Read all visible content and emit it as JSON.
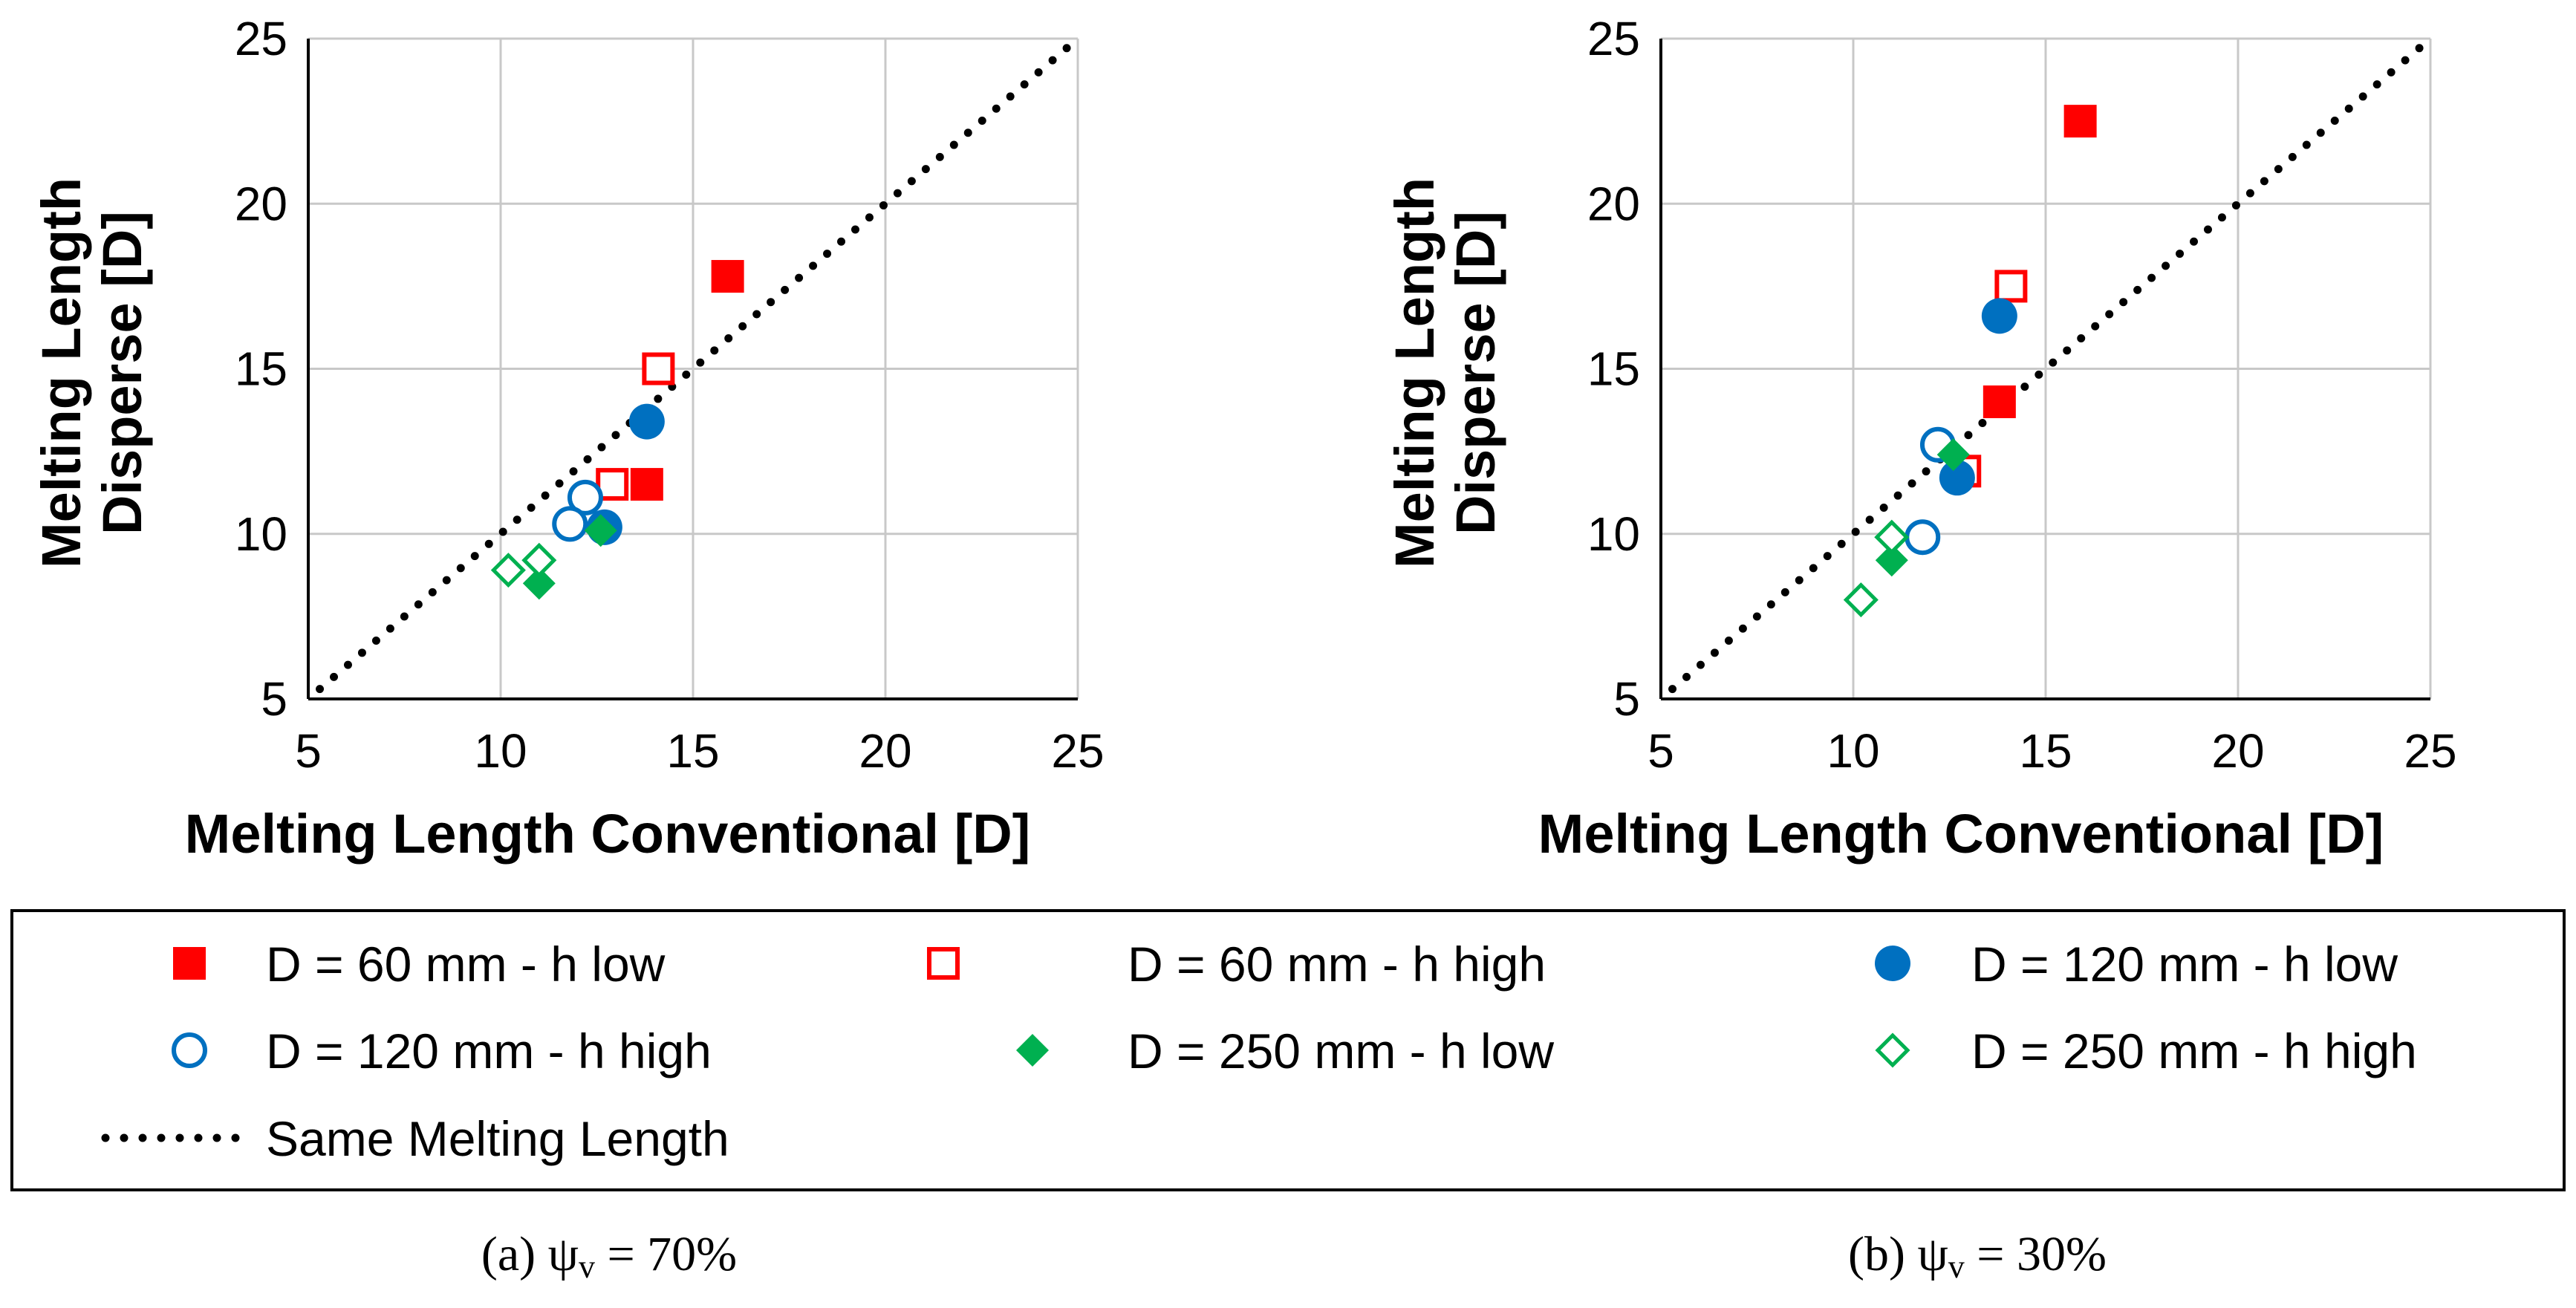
{
  "colors": {
    "red": "#ff0000",
    "blue": "#0070c0",
    "green": "#00b050",
    "line": "#000000",
    "grid": "#c8c8c8"
  },
  "legend": {
    "items": [
      {
        "key": "d60_low",
        "label": "D = 60 mm - h low",
        "marker": "square-filled",
        "color": "#ff0000"
      },
      {
        "key": "d60_high",
        "label": "D = 60 mm - h high",
        "marker": "square-open",
        "color": "#ff0000"
      },
      {
        "key": "d120_low",
        "label": "D = 120 mm - h low",
        "marker": "circle-filled",
        "color": "#0070c0"
      },
      {
        "key": "d120_high",
        "label": "D = 120 mm - h high",
        "marker": "circle-open",
        "color": "#0070c0"
      },
      {
        "key": "d250_low",
        "label": "D = 250 mm - h low",
        "marker": "diamond-filled",
        "color": "#00b050"
      },
      {
        "key": "d250_high",
        "label": "D = 250 mm - h high",
        "marker": "diamond-open",
        "color": "#00b050"
      },
      {
        "key": "same",
        "label": "Same Melting Length",
        "marker": "dotted-line",
        "color": "#000000"
      }
    ]
  },
  "chart_data": [
    {
      "type": "scatter",
      "panel": "a",
      "caption_prefix": "(a) ψ",
      "caption_sub": "v",
      "caption_suffix": " = 70%",
      "xlabel": "Melting Length Conventional [D]",
      "ylabel_line1": "Melting Length",
      "ylabel_line2": "Disperse [D]",
      "xlim": [
        5,
        25
      ],
      "ylim": [
        5,
        25
      ],
      "xticks": [
        5,
        10,
        15,
        20,
        25
      ],
      "yticks": [
        5,
        10,
        15,
        20,
        25
      ],
      "grid": true,
      "reference_line": {
        "name": "Same Melting Length",
        "x": [
          5.3,
          25
        ],
        "y": [
          5.3,
          25
        ]
      },
      "series": [
        {
          "key": "d60_low",
          "name": "D = 60 mm - h low",
          "points": [
            [
              15.9,
              17.8
            ],
            [
              13.8,
              11.5
            ]
          ]
        },
        {
          "key": "d60_high",
          "name": "D = 60 mm - h high",
          "points": [
            [
              14.1,
              15.0
            ],
            [
              12.9,
              11.5
            ]
          ]
        },
        {
          "key": "d120_low",
          "name": "D = 120 mm - h low",
          "points": [
            [
              13.8,
              13.4
            ],
            [
              12.7,
              10.2
            ]
          ]
        },
        {
          "key": "d120_high",
          "name": "D = 120 mm - h high",
          "points": [
            [
              12.2,
              11.1
            ],
            [
              11.8,
              10.3
            ]
          ]
        },
        {
          "key": "d250_low",
          "name": "D = 250 mm - h low",
          "points": [
            [
              11.0,
              8.5
            ],
            [
              12.6,
              10.1
            ]
          ]
        },
        {
          "key": "d250_high",
          "name": "D = 250 mm - h high",
          "points": [
            [
              10.2,
              8.9
            ],
            [
              11.0,
              9.2
            ]
          ]
        }
      ]
    },
    {
      "type": "scatter",
      "panel": "b",
      "caption_prefix": "(b) ψ",
      "caption_sub": "v",
      "caption_suffix": " = 30%",
      "xlabel": "Melting Length Conventional [D]",
      "ylabel_line1": "Melting Length",
      "ylabel_line2": "Disperse [D]",
      "xlim": [
        5,
        25
      ],
      "ylim": [
        5,
        25
      ],
      "xticks": [
        5,
        10,
        15,
        20,
        25
      ],
      "yticks": [
        5,
        10,
        15,
        20,
        25
      ],
      "grid": true,
      "reference_line": {
        "name": "Same Melting Length",
        "x": [
          5.3,
          25
        ],
        "y": [
          5.3,
          25
        ]
      },
      "series": [
        {
          "key": "d60_low",
          "name": "D = 60 mm - h low",
          "points": [
            [
              15.9,
              22.5
            ],
            [
              13.8,
              14.0
            ]
          ]
        },
        {
          "key": "d60_high",
          "name": "D = 60 mm - h high",
          "points": [
            [
              14.1,
              17.5
            ],
            [
              12.9,
              11.9
            ]
          ]
        },
        {
          "key": "d120_low",
          "name": "D = 120 mm - h low",
          "points": [
            [
              13.8,
              16.6
            ],
            [
              12.7,
              11.7
            ]
          ]
        },
        {
          "key": "d120_high",
          "name": "D = 120 mm - h high",
          "points": [
            [
              12.2,
              12.7
            ],
            [
              11.8,
              9.9
            ]
          ]
        },
        {
          "key": "d250_low",
          "name": "D = 250 mm - h low",
          "points": [
            [
              11.0,
              9.2
            ],
            [
              12.6,
              12.4
            ]
          ]
        },
        {
          "key": "d250_high",
          "name": "D = 250 mm - h high",
          "points": [
            [
              10.2,
              8.0
            ],
            [
              11.0,
              9.9
            ]
          ]
        }
      ]
    }
  ]
}
